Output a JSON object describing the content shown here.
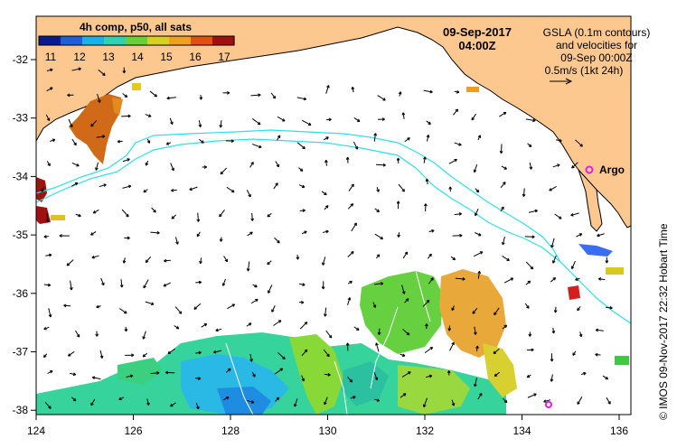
{
  "colorbar": {
    "title": "4h comp, p50, all sats",
    "ticks": [
      "11",
      "12",
      "13",
      "14",
      "15",
      "16",
      "17"
    ],
    "colors": [
      "#0a1a8c",
      "#1e5fd8",
      "#1ab0e8",
      "#30d0b0",
      "#6ad03a",
      "#d8d020",
      "#f0a020",
      "#e05010",
      "#a01010"
    ]
  },
  "timestamp": {
    "date": "09-Sep-2017",
    "time": "04:00Z"
  },
  "legend_note": {
    "line1": "GSLA (0.1m contours)",
    "line2": "and velocities for",
    "line3": "09-Sep 00:00Z",
    "line4": "0.5m/s (1kt 24h)"
  },
  "argo_label": "Argo",
  "credit": "© IMOS 09-Nov-2017 22:32 Hobart Time",
  "axes": {
    "x_ticks": [
      "124",
      "126",
      "128",
      "130",
      "132",
      "134",
      "136"
    ],
    "y_ticks": [
      "-32",
      "-33",
      "-34",
      "-35",
      "-36",
      "-37",
      "-38"
    ]
  },
  "colors": {
    "land": "#fcc890",
    "ocean": "#ffffff",
    "contour": "#30e0e8",
    "argo": "#e020e0"
  }
}
